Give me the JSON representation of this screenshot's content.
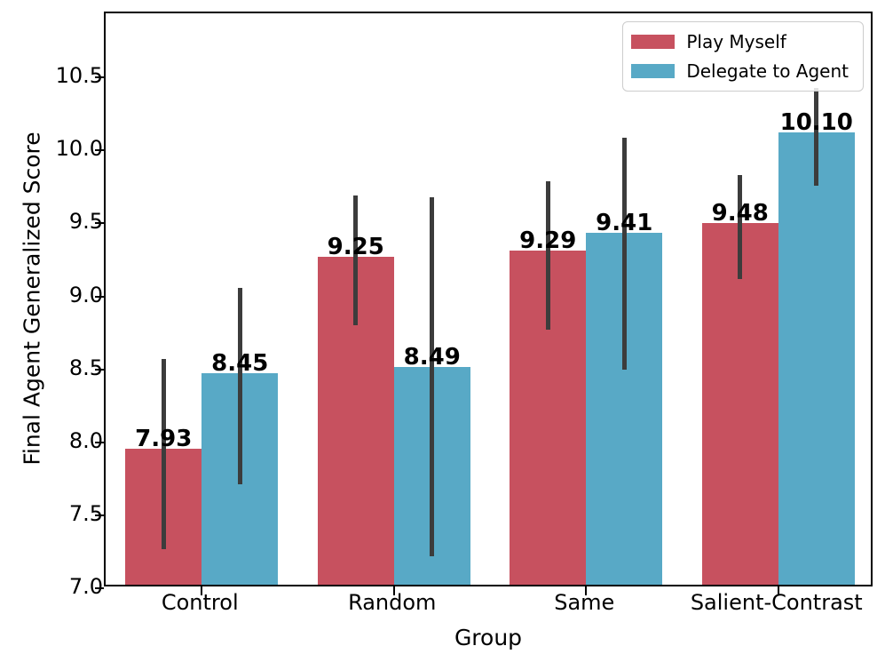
{
  "chart_data": {
    "type": "bar",
    "title": "",
    "xlabel": "Group",
    "ylabel": "Final Agent Generalized Score",
    "categories": [
      "Control",
      "Random",
      "Same",
      "Salient-Contrast"
    ],
    "series": [
      {
        "name": "Play Myself",
        "color": "#C7515F",
        "values": [
          7.93,
          9.25,
          9.29,
          9.48
        ],
        "labels": [
          "7.93",
          "9.25",
          "9.29",
          "9.48"
        ],
        "error_low": [
          7.27,
          8.8,
          8.77,
          9.12
        ],
        "error_high": [
          8.57,
          9.69,
          9.79,
          9.83
        ]
      },
      {
        "name": "Delegate to Agent",
        "color": "#58A9C6",
        "values": [
          8.45,
          8.49,
          9.41,
          10.1
        ],
        "labels": [
          "8.45",
          "8.49",
          "9.41",
          "10.10"
        ],
        "error_low": [
          7.71,
          7.22,
          8.5,
          9.76
        ],
        "error_high": [
          9.06,
          9.68,
          10.09,
          10.43
        ]
      }
    ],
    "ylim": [
      7.0,
      10.94
    ],
    "ytick_values": [
      7.0,
      7.5,
      8.0,
      8.5,
      9.0,
      9.5,
      10.0,
      10.5
    ],
    "ytick_labels": [
      "7.0",
      "7.5",
      "8.0",
      "8.5",
      "9.0",
      "9.5",
      "10.0",
      "10.5"
    ],
    "grid": false,
    "legend_position": "upper right",
    "error_bar_color": "#3C3C3C",
    "axis_color": "#000000",
    "background_color": "#FFFFFF"
  }
}
